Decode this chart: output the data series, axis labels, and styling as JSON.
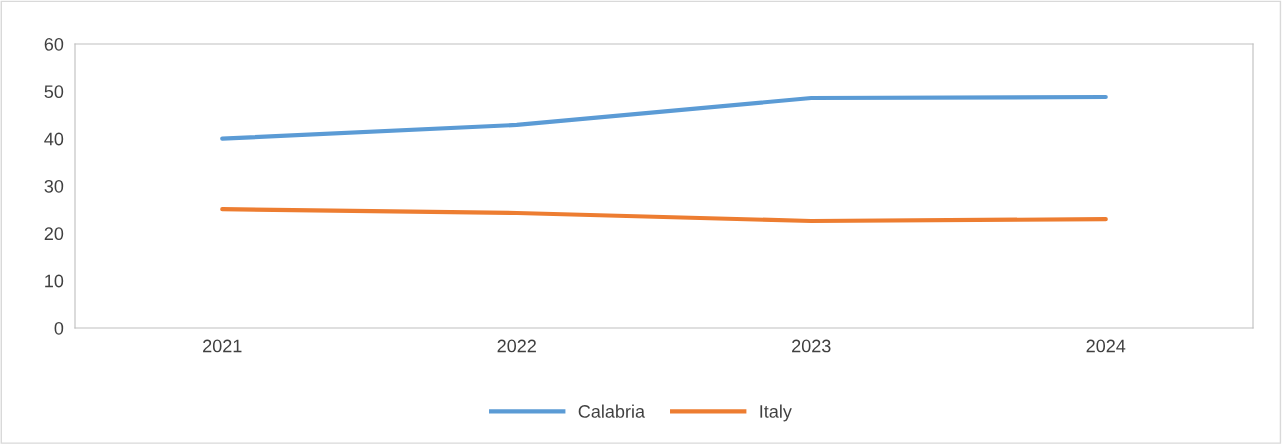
{
  "chart_data": {
    "type": "line",
    "categories": [
      "2021",
      "2022",
      "2023",
      "2024"
    ],
    "series": [
      {
        "name": "Calabria",
        "color": "#5b9bd5",
        "values": [
          40,
          42.9,
          48.6,
          48.8
        ]
      },
      {
        "name": "Italy",
        "color": "#ed7d31",
        "values": [
          25.1,
          24.3,
          22.6,
          23.0
        ]
      }
    ],
    "ylim": [
      0,
      60
    ],
    "yticks": [
      0,
      10,
      20,
      30,
      40,
      50,
      60
    ],
    "grid": false,
    "legend": "bottom",
    "marker": "none",
    "line_style": "solid"
  }
}
